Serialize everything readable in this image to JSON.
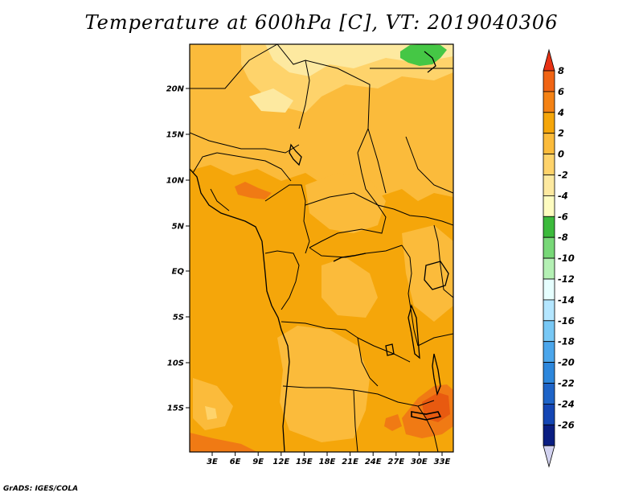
{
  "title": "Temperature at 600hPa [C], VT: 2019040306",
  "credit": "GrADS: IGES/COLA",
  "map": {
    "lat_ticks": [
      "20N",
      "15N",
      "10N",
      "5N",
      "EQ",
      "5S",
      "10S",
      "15S"
    ],
    "lon_ticks": [
      "3E",
      "6E",
      "9E",
      "12E",
      "15E",
      "18E",
      "21E",
      "24E",
      "27E",
      "30E",
      "33E"
    ],
    "field_colors": {
      "base": "#f5a60a",
      "warm_light": "#fbbb3b",
      "cool_light": "#fed36b",
      "pale": "#fde9a0",
      "green": "#45c745",
      "hot": "#f07a14",
      "hotter": "#e85a10"
    }
  },
  "colorbar": {
    "labels": [
      "8",
      "6",
      "4",
      "2",
      "0",
      "-2",
      "-4",
      "-6",
      "-8",
      "-10",
      "-12",
      "-14",
      "-16",
      "-18",
      "-20",
      "-22",
      "-24",
      "-26"
    ],
    "colors": [
      "#e83214",
      "#f06414",
      "#f48214",
      "#f5a60a",
      "#fbbb3b",
      "#fed36b",
      "#fde9a0",
      "#fefcc0",
      "#3cba3c",
      "#78d878",
      "#b4f0b4",
      "#e6ffff",
      "#b4e6ff",
      "#78c8f5",
      "#4ba6eb",
      "#2d87dc",
      "#1e64c8",
      "#1446b4",
      "#0a1e82",
      "#d2d2f0"
    ]
  }
}
